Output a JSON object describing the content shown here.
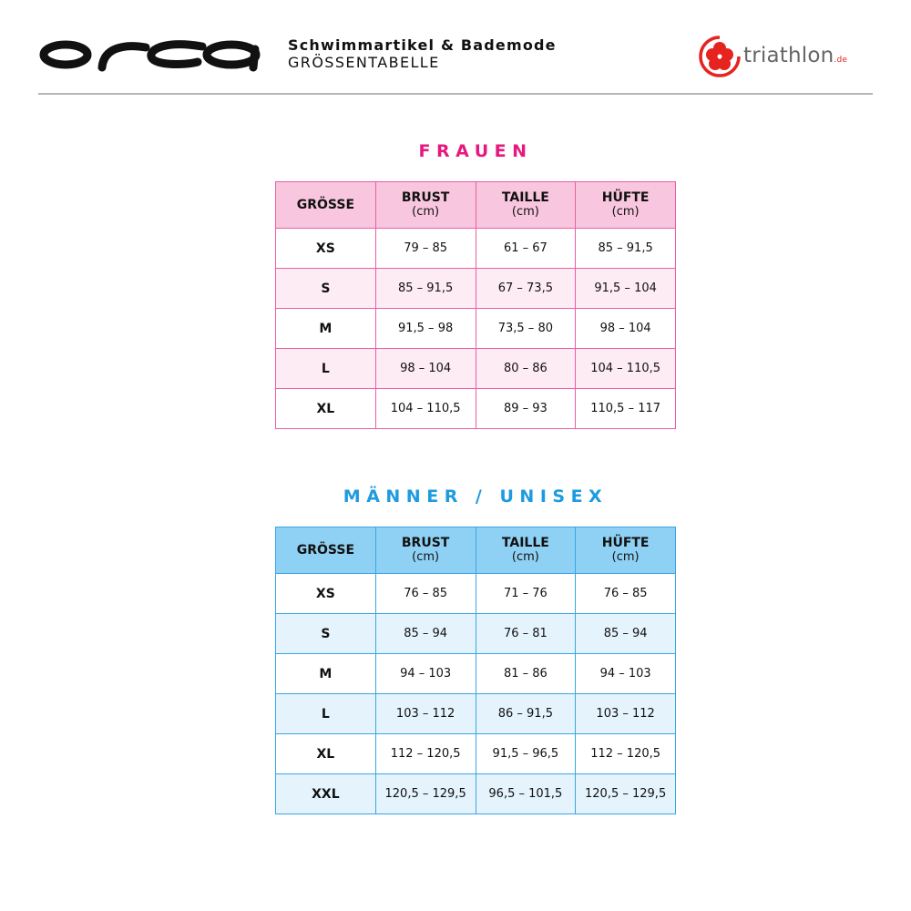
{
  "header": {
    "logo_text": "orca",
    "line1": "Schwimmartikel & Bademode",
    "line2": "GRÖSSENTABELLE",
    "partner_logo": {
      "word": "triathlon",
      "suffix": ".de",
      "icon": "hibiscus-flower-icon",
      "color": "#e52420"
    }
  },
  "colors": {
    "women_accent": "#e6197e",
    "men_accent": "#1e9be0"
  },
  "women": {
    "title": "FRAUEN",
    "columns": [
      {
        "label": "GRÖSSE",
        "unit": ""
      },
      {
        "label": "BRUST",
        "unit": "(cm)"
      },
      {
        "label": "TAILLE",
        "unit": "(cm)"
      },
      {
        "label": "HÜFTE",
        "unit": "(cm)"
      }
    ],
    "rows": [
      [
        "XS",
        "79 – 85",
        "61 – 67",
        "85 – 91,5"
      ],
      [
        "S",
        "85 – 91,5",
        "67 – 73,5",
        "91,5 – 104"
      ],
      [
        "M",
        "91,5 – 98",
        "73,5 – 80",
        "98 – 104"
      ],
      [
        "L",
        "98 – 104",
        "80 – 86",
        "104 – 110,5"
      ],
      [
        "XL",
        "104 – 110,5",
        "89 – 93",
        "110,5 – 117"
      ]
    ]
  },
  "men": {
    "title": "MÄNNER / UNISEX",
    "columns": [
      {
        "label": "GRÖSSE",
        "unit": ""
      },
      {
        "label": "BRUST",
        "unit": "(cm)"
      },
      {
        "label": "TAILLE",
        "unit": "(cm)"
      },
      {
        "label": "HÜFTE",
        "unit": "(cm)"
      }
    ],
    "rows": [
      [
        "XS",
        "76 – 85",
        "71 – 76",
        "76 – 85"
      ],
      [
        "S",
        "85 – 94",
        "76 – 81",
        "85 – 94"
      ],
      [
        "M",
        "94 – 103",
        "81 – 86",
        "94 – 103"
      ],
      [
        "L",
        "103 – 112",
        "86 – 91,5",
        "103 – 112"
      ],
      [
        "XL",
        "112 – 120,5",
        "91,5 – 96,5",
        "112 – 120,5"
      ],
      [
        "XXL",
        "120,5 – 129,5",
        "96,5 – 101,5",
        "120,5 – 129,5"
      ]
    ]
  }
}
